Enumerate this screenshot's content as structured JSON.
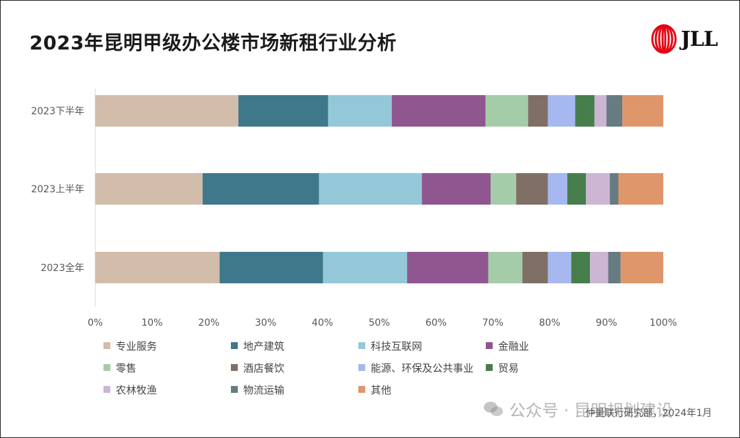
{
  "title": "2023年昆明甲级办公楼市场新租行业分析",
  "logo": {
    "text": "JLL",
    "brand_color": "#e30613"
  },
  "source": "仲量联行研究部，2024年1月",
  "watermark": {
    "text": "公众号 · 昆明规划建设"
  },
  "chart_data": {
    "type": "bar",
    "orientation": "horizontal",
    "stacked": true,
    "percent": true,
    "categories": [
      "2023下半年",
      "2023上半年",
      "2023全年"
    ],
    "xlim": [
      0,
      100
    ],
    "xticks": [
      "0%",
      "10%",
      "20%",
      "30%",
      "40%",
      "50%",
      "60%",
      "70%",
      "80%",
      "90%",
      "100%"
    ],
    "grid": false,
    "legend_position": "bottom",
    "series": [
      {
        "name": "专业服务",
        "color": "#d2bcaa",
        "values": [
          25.2,
          18.9,
          21.9
        ]
      },
      {
        "name": "地产建筑",
        "color": "#3f788a",
        "values": [
          15.8,
          20.5,
          18.2
        ]
      },
      {
        "name": "科技互联网",
        "color": "#94c8d8",
        "values": [
          11.2,
          18.1,
          14.8
        ]
      },
      {
        "name": "金融业",
        "color": "#8f568f",
        "values": [
          16.5,
          12.1,
          14.3
        ]
      },
      {
        "name": "零售",
        "color": "#a4cca8",
        "values": [
          7.5,
          4.5,
          6.0
        ]
      },
      {
        "name": "酒店餐饮",
        "color": "#7f6f64",
        "values": [
          3.5,
          5.6,
          4.5
        ]
      },
      {
        "name": "能源、环保及公共事业",
        "color": "#a6b8ef",
        "values": [
          4.8,
          3.4,
          4.1
        ]
      },
      {
        "name": "贸易",
        "color": "#477e4b",
        "values": [
          3.4,
          3.3,
          3.3
        ]
      },
      {
        "name": "农林牧渔",
        "color": "#ccb6d4",
        "values": [
          2.1,
          4.2,
          3.2
        ]
      },
      {
        "name": "物流运输",
        "color": "#667b82",
        "values": [
          2.8,
          1.5,
          2.2
        ]
      },
      {
        "name": "其他",
        "color": "#df966a",
        "values": [
          7.2,
          7.9,
          7.5
        ]
      }
    ]
  }
}
